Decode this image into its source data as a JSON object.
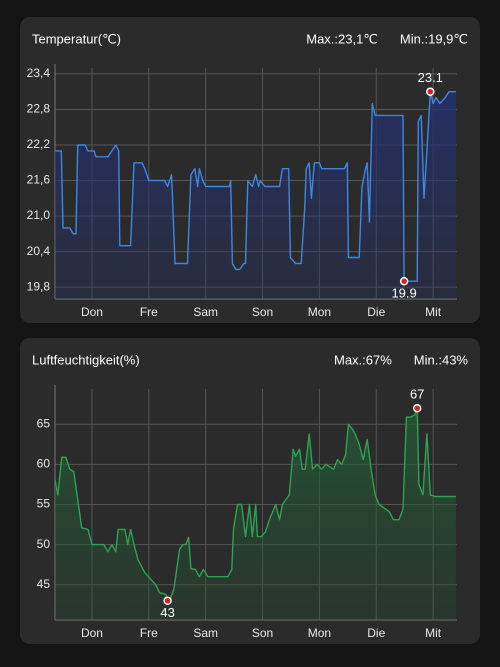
{
  "chart_data": [
    {
      "type": "line",
      "title": "Temperatur(℃)",
      "max_label": "Max.:23,1℃",
      "min_label": "Min.:19,9℃",
      "color": "#3f86e0",
      "fill": "#1d2a55",
      "grid": true,
      "xlim": [
        0.35,
        7.42
      ],
      "xticks": [
        {
          "value": 1,
          "label": "Don"
        },
        {
          "value": 2,
          "label": "Fre"
        },
        {
          "value": 3,
          "label": "Sam"
        },
        {
          "value": 4,
          "label": "Son"
        },
        {
          "value": 5,
          "label": "Mon"
        },
        {
          "value": 6,
          "label": "Die"
        },
        {
          "value": 7,
          "label": "Mit"
        }
      ],
      "ylim": [
        19.6,
        23.5
      ],
      "yticks": [
        {
          "value": 19.8,
          "label": "19,8"
        },
        {
          "value": 20.4,
          "label": "20,4"
        },
        {
          "value": 21.0,
          "label": "21,0"
        },
        {
          "value": 21.6,
          "label": "21,6"
        },
        {
          "value": 22.2,
          "label": "22,2"
        },
        {
          "value": 22.8,
          "label": "22,8"
        },
        {
          "value": 23.4,
          "label": "23,4"
        }
      ],
      "x": [
        0.35,
        0.46,
        0.49,
        0.61,
        0.67,
        0.72,
        0.75,
        0.88,
        0.93,
        1.04,
        1.07,
        1.28,
        1.35,
        1.42,
        1.47,
        1.49,
        1.68,
        1.74,
        1.88,
        1.93,
        2.0,
        2.28,
        2.33,
        2.4,
        2.46,
        2.68,
        2.74,
        2.81,
        2.86,
        2.89,
        2.95,
        3.0,
        3.42,
        3.44,
        3.47,
        3.53,
        3.6,
        3.67,
        3.7,
        3.74,
        3.82,
        3.88,
        3.93,
        3.96,
        4.04,
        4.3,
        4.35,
        4.46,
        4.49,
        4.58,
        4.68,
        4.74,
        4.77,
        4.82,
        4.86,
        4.91,
        5.0,
        5.04,
        5.44,
        5.49,
        5.51,
        5.7,
        5.75,
        5.81,
        5.84,
        5.88,
        5.93,
        5.98,
        6.47,
        6.49,
        6.72,
        6.74,
        6.79,
        6.84,
        6.89,
        6.95,
        7.0,
        7.05,
        7.12,
        7.21,
        7.28,
        7.4
      ],
      "values": [
        22.1,
        22.1,
        20.8,
        20.8,
        20.7,
        20.7,
        22.2,
        22.2,
        22.1,
        22.1,
        22.0,
        22.0,
        22.1,
        22.2,
        22.1,
        20.5,
        20.5,
        21.9,
        21.9,
        21.8,
        21.6,
        21.6,
        21.5,
        21.7,
        20.2,
        20.2,
        21.7,
        21.8,
        21.5,
        21.8,
        21.6,
        21.5,
        21.5,
        21.6,
        20.2,
        20.1,
        20.1,
        20.2,
        20.2,
        21.6,
        21.5,
        21.7,
        21.5,
        21.6,
        21.5,
        21.5,
        21.8,
        21.8,
        20.3,
        20.2,
        20.2,
        21.1,
        21.8,
        21.9,
        21.3,
        21.9,
        21.9,
        21.8,
        21.8,
        21.9,
        20.3,
        20.3,
        21.5,
        21.8,
        21.9,
        20.9,
        22.9,
        22.7,
        22.7,
        19.9,
        19.9,
        22.6,
        22.7,
        21.3,
        22.1,
        23.1,
        22.9,
        23.0,
        22.9,
        23.0,
        23.1,
        23.1
      ],
      "annotations": [
        {
          "text": "23.1",
          "x": 6.95,
          "y": 23.1
        },
        {
          "text": "19.9",
          "x": 6.49,
          "y": 19.9
        }
      ]
    },
    {
      "type": "line",
      "title": "Luftfeuchtigkeit(%)",
      "max_label": "Max.:67%",
      "min_label": "Min.:43%",
      "color": "#2fa152",
      "fill": "#1f3a28",
      "grid": true,
      "xlim": [
        0.35,
        7.42
      ],
      "xticks": [
        {
          "value": 1,
          "label": "Don"
        },
        {
          "value": 2,
          "label": "Fre"
        },
        {
          "value": 3,
          "label": "Sam"
        },
        {
          "value": 4,
          "label": "Son"
        },
        {
          "value": 5,
          "label": "Mon"
        },
        {
          "value": 6,
          "label": "Die"
        },
        {
          "value": 7,
          "label": "Mit"
        }
      ],
      "ylim": [
        40.6,
        69.4
      ],
      "yticks": [
        45,
        50,
        55,
        60,
        65
      ],
      "x": [
        0.35,
        0.4,
        0.47,
        0.54,
        0.61,
        0.68,
        0.75,
        0.82,
        0.93,
        1.0,
        1.21,
        1.28,
        1.35,
        1.42,
        1.46,
        1.58,
        1.63,
        1.68,
        1.74,
        1.81,
        1.93,
        2.02,
        2.12,
        2.19,
        2.3,
        2.33,
        2.37,
        2.44,
        2.49,
        2.54,
        2.6,
        2.65,
        2.7,
        2.74,
        2.82,
        2.89,
        2.96,
        3.04,
        3.39,
        3.46,
        3.49,
        3.56,
        3.63,
        3.7,
        3.77,
        3.82,
        3.88,
        3.91,
        3.98,
        4.05,
        4.12,
        4.23,
        4.3,
        4.35,
        4.47,
        4.54,
        4.58,
        4.65,
        4.7,
        4.75,
        4.82,
        4.88,
        4.96,
        5.04,
        5.11,
        5.25,
        5.32,
        5.39,
        5.46,
        5.51,
        5.58,
        5.63,
        5.7,
        5.77,
        5.84,
        5.91,
        5.98,
        6.05,
        6.23,
        6.3,
        6.4,
        6.47,
        6.53,
        6.61,
        6.68,
        6.72,
        6.75,
        6.82,
        6.89,
        6.95,
        7.04,
        7.4
      ],
      "values": [
        58.1,
        56.2,
        60.9,
        60.9,
        59.4,
        59.1,
        55.6,
        52.1,
        51.9,
        50.0,
        50.0,
        49.1,
        50.0,
        49.1,
        51.9,
        51.9,
        50.0,
        51.9,
        50.0,
        48.1,
        46.5,
        45.8,
        45.0,
        44.0,
        43.8,
        43.0,
        43.1,
        44.4,
        46.9,
        49.4,
        50.0,
        50.0,
        50.9,
        47.0,
        46.9,
        46.0,
        46.9,
        46.0,
        46.0,
        46.9,
        51.9,
        55.0,
        55.0,
        51.0,
        55.0,
        51.0,
        55.0,
        51.0,
        51.0,
        51.6,
        53.1,
        55.0,
        53.1,
        55.0,
        56.2,
        61.9,
        61.0,
        61.9,
        59.4,
        59.4,
        63.8,
        59.4,
        60.0,
        59.4,
        60.0,
        59.4,
        60.6,
        60.0,
        61.2,
        65.0,
        64.4,
        63.8,
        62.5,
        60.6,
        63.1,
        59.4,
        56.2,
        55.0,
        54.1,
        53.1,
        53.1,
        54.4,
        65.9,
        65.9,
        66.2,
        67.0,
        57.5,
        56.2,
        63.8,
        56.2,
        56.0,
        56.0
      ],
      "annotations": [
        {
          "text": "67",
          "x": 6.72,
          "y": 67
        },
        {
          "text": "43",
          "x": 2.33,
          "y": 43
        }
      ]
    }
  ]
}
